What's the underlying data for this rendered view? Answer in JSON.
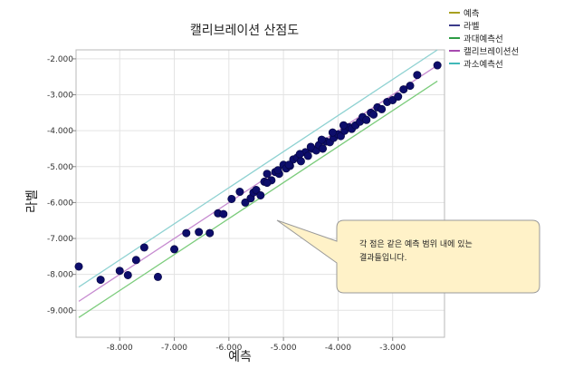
{
  "chart_data": {
    "type": "scatter",
    "title": "캘리브레이션 산점도",
    "xlabel": "예측",
    "ylabel": "라벨",
    "xlim": [
      -8.8,
      -2.05
    ],
    "ylim": [
      -9.75,
      -1.75
    ],
    "x_ticks": [
      -8.0,
      -7.0,
      -6.0,
      -5.0,
      -4.0,
      -3.0
    ],
    "x_tick_labels": [
      "-8.000",
      "-7.000",
      "-6.000",
      "-5.000",
      "-4.000",
      "-3.000"
    ],
    "y_ticks": [
      -2.0,
      -3.0,
      -4.0,
      -5.0,
      -6.0,
      -7.0,
      -8.0,
      -9.0
    ],
    "y_tick_labels": [
      "-2.000",
      "-3.000",
      "-4.000",
      "-5.000",
      "-6.000",
      "-7.000",
      "-8.000",
      "-9.000"
    ],
    "grid": true,
    "legend_position": "top-right",
    "legend": [
      {
        "name": "예측",
        "color": "#a8a020"
      },
      {
        "name": "라벨",
        "color": "#3a3a8a"
      },
      {
        "name": "과대예측선",
        "color": "#2e9c45"
      },
      {
        "name": "캘리브레이션선",
        "color": "#a74ab0"
      },
      {
        "name": "과소예측선",
        "color": "#40b8b8"
      }
    ],
    "lines": [
      {
        "name": "과대예측선",
        "color": "#7ccc7c",
        "x": [
          -8.75,
          -2.18
        ],
        "y": [
          -9.2,
          -2.62
        ]
      },
      {
        "name": "캘리브레이션선",
        "color": "#c68ad0",
        "x": [
          -8.75,
          -2.18
        ],
        "y": [
          -8.75,
          -2.18
        ]
      },
      {
        "name": "과소예측선",
        "color": "#8fd2d2",
        "x": [
          -8.75,
          -2.18
        ],
        "y": [
          -8.35,
          -1.75
        ]
      }
    ],
    "series": [
      {
        "name": "라벨",
        "color": "#0d0d6b",
        "x": [
          -8.75,
          -8.35,
          -8.0,
          -7.85,
          -7.7,
          -7.55,
          -7.3,
          -7.0,
          -6.78,
          -6.55,
          -6.35,
          -6.2,
          -6.1,
          -5.95,
          -5.8,
          -5.7,
          -5.6,
          -5.55,
          -5.5,
          -5.42,
          -5.35,
          -5.3,
          -5.22,
          -5.15,
          -5.08,
          -5.0,
          -4.95,
          -4.88,
          -4.82,
          -4.75,
          -4.68,
          -4.6,
          -4.55,
          -4.48,
          -4.4,
          -4.35,
          -4.28,
          -4.22,
          -4.15,
          -4.08,
          -4.0,
          -3.95,
          -3.88,
          -3.8,
          -3.75,
          -3.68,
          -3.6,
          -3.55,
          -3.48,
          -3.4,
          -3.35,
          -3.28,
          -3.2,
          -3.1,
          -3.0,
          -2.9,
          -2.8,
          -2.68,
          -2.55,
          -2.18,
          -5.3,
          -5.1,
          -4.9,
          -4.7,
          -4.5,
          -4.3,
          -4.1,
          -3.9
        ],
        "y": [
          -7.78,
          -8.15,
          -7.9,
          -8.02,
          -7.6,
          -7.25,
          -8.07,
          -7.3,
          -6.85,
          -6.82,
          -6.85,
          -6.3,
          -6.32,
          -5.9,
          -5.7,
          -6.0,
          -5.88,
          -5.72,
          -5.65,
          -5.8,
          -5.42,
          -5.2,
          -5.38,
          -5.15,
          -5.2,
          -4.95,
          -5.05,
          -4.98,
          -4.8,
          -4.75,
          -4.85,
          -4.6,
          -4.7,
          -4.5,
          -4.55,
          -4.4,
          -4.5,
          -4.3,
          -4.32,
          -4.2,
          -4.1,
          -4.15,
          -4.0,
          -3.9,
          -3.95,
          -3.85,
          -3.75,
          -3.62,
          -3.7,
          -3.5,
          -3.55,
          -3.35,
          -3.4,
          -3.2,
          -3.15,
          -3.05,
          -2.85,
          -2.75,
          -2.45,
          -2.18,
          -5.45,
          -5.1,
          -4.95,
          -4.65,
          -4.45,
          -4.25,
          -4.05,
          -3.85
        ]
      }
    ]
  },
  "annotation": {
    "line1": "각 점은 같은 예측 범위 내에 있는",
    "line2": "결과들입니다."
  }
}
